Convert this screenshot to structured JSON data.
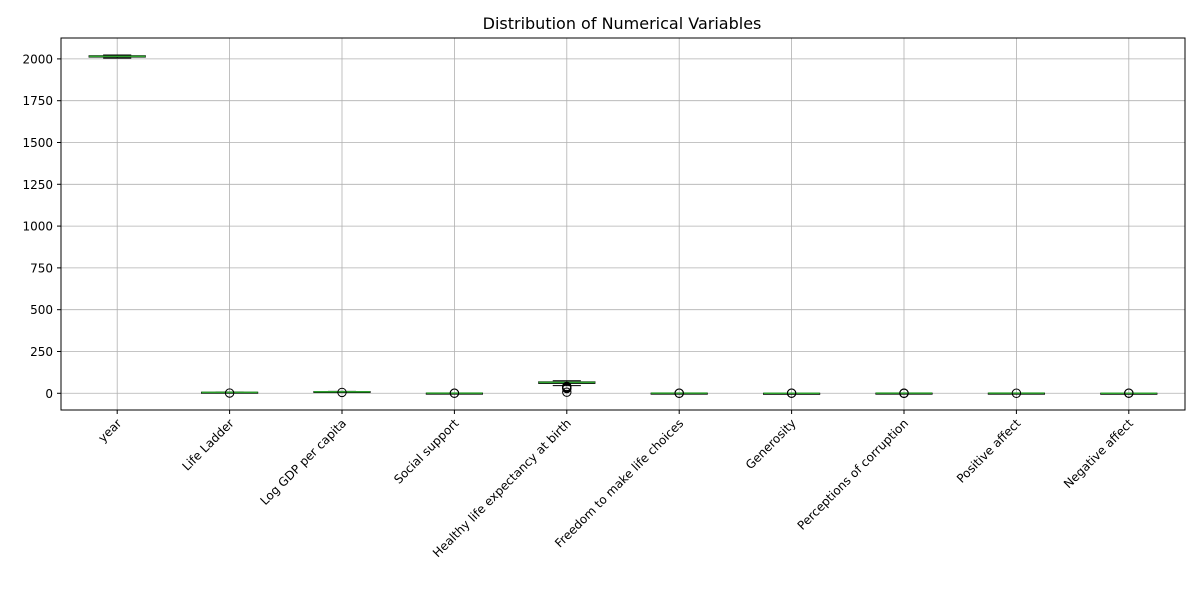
{
  "chart_data": {
    "type": "box",
    "title": "Distribution of Numerical Variables",
    "xlabel": "",
    "ylabel": "",
    "ylim": [
      -100,
      2125
    ],
    "y_ticks": [
      0,
      250,
      500,
      750,
      1000,
      1250,
      1500,
      1750,
      2000
    ],
    "grid": true,
    "legend": "none",
    "colors": {
      "box": "#000000",
      "whisker": "#000000",
      "median": "#2ca02c",
      "outlier_edge": "#000000",
      "grid": "#b0b0b0"
    },
    "categories": [
      "year",
      "Life Ladder",
      "Log GDP per capita",
      "Social support",
      "Healthy life expectancy at birth",
      "Freedom to make life choices",
      "Generosity",
      "Perceptions of corruption",
      "Positive affect",
      "Negative affect"
    ],
    "boxes": [
      {
        "name": "year",
        "whislo": 2005,
        "q1": 2011,
        "med": 2015,
        "q3": 2019,
        "whishi": 2023,
        "fliers": []
      },
      {
        "name": "Life Ladder",
        "whislo": 1.7,
        "q1": 4.6,
        "med": 5.45,
        "q3": 6.3,
        "whishi": 8.0,
        "fliers": [
          1.3
        ]
      },
      {
        "name": "Log GDP per capita",
        "whislo": 5.5,
        "q1": 8.5,
        "med": 9.5,
        "q3": 10.4,
        "whishi": 11.7,
        "fliers": [
          5.3
        ]
      },
      {
        "name": "Social support",
        "whislo": 0.45,
        "q1": 0.75,
        "med": 0.84,
        "q3": 0.9,
        "whishi": 0.99,
        "fliers": [
          0.29,
          0.38
        ]
      },
      {
        "name": "Healthy life expectancy at birth",
        "whislo": 46,
        "q1": 59,
        "med": 65,
        "q3": 68.5,
        "whishi": 75,
        "fliers": [
          6.7,
          28,
          32,
          36,
          39,
          41
        ]
      },
      {
        "name": "Freedom to make life choices",
        "whislo": 0.4,
        "q1": 0.66,
        "med": 0.77,
        "q3": 0.86,
        "whishi": 0.99,
        "fliers": [
          0.23,
          0.3
        ]
      },
      {
        "name": "Generosity",
        "whislo": -0.34,
        "q1": -0.11,
        "med": -0.02,
        "q3": 0.09,
        "whishi": 0.35,
        "fliers": [
          0.5,
          0.7
        ]
      },
      {
        "name": "Perceptions of corruption",
        "whislo": 0.45,
        "q1": 0.69,
        "med": 0.8,
        "q3": 0.87,
        "whishi": 0.98,
        "fliers": [
          0.04,
          0.2,
          0.3
        ]
      },
      {
        "name": "Positive affect",
        "whislo": 0.3,
        "q1": 0.57,
        "med": 0.66,
        "q3": 0.74,
        "whishi": 0.88,
        "fliers": [
          0.18
        ]
      },
      {
        "name": "Negative affect",
        "whislo": 0.08,
        "q1": 0.21,
        "med": 0.26,
        "q3": 0.33,
        "whishi": 0.5,
        "fliers": [
          0.6,
          0.7
        ]
      }
    ]
  }
}
